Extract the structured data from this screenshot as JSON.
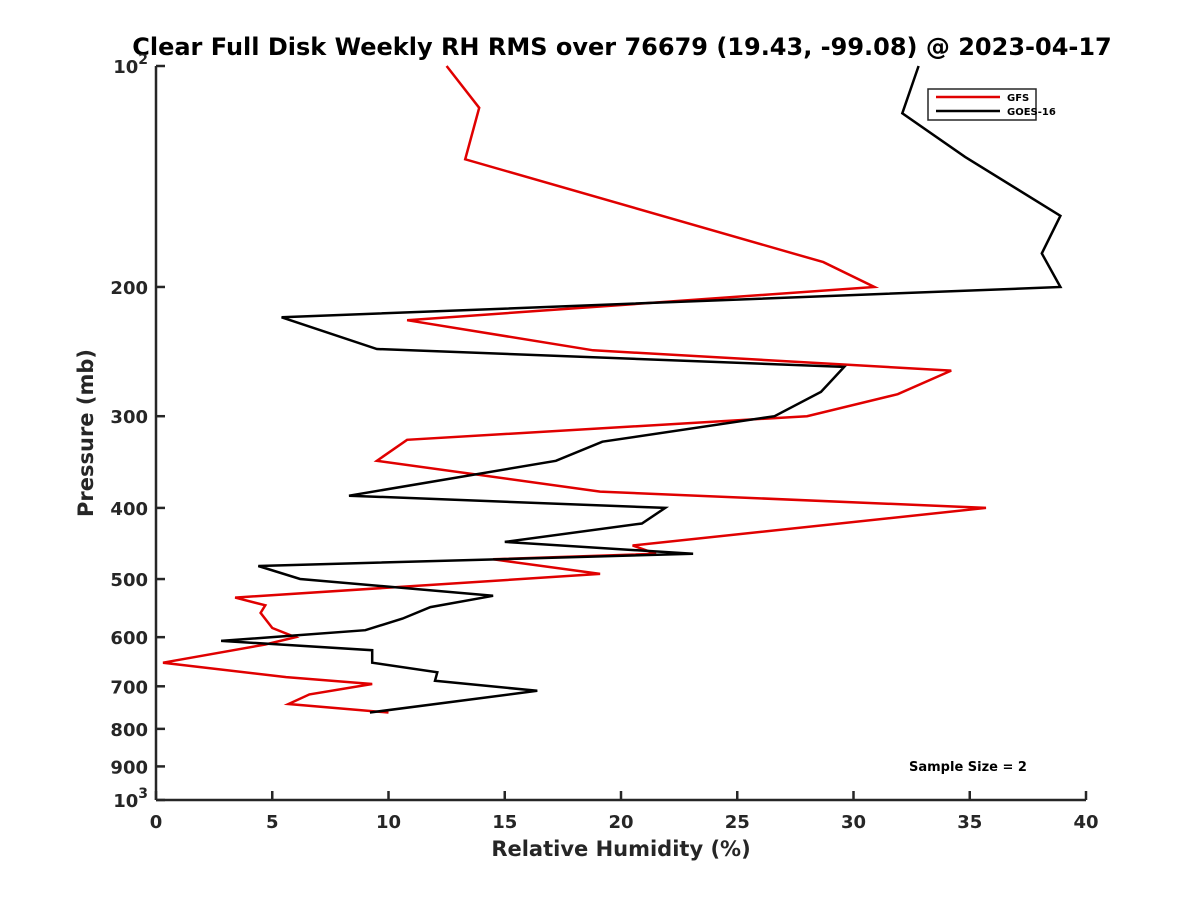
{
  "chart_data": {
    "type": "line",
    "title": "Clear Full Disk Weekly RH RMS over 76679 (19.43, -99.08) @ 2023-04-17",
    "xlabel": "Relative Humidity (%)",
    "ylabel": "Pressure (mb)",
    "xlim": [
      0,
      40
    ],
    "ylim": [
      100,
      1000
    ],
    "y_scale": "log",
    "y_reversed": true,
    "x_ticks": [
      0,
      5,
      10,
      15,
      20,
      25,
      30,
      35,
      40
    ],
    "x_tick_labels": [
      "0",
      "5",
      "10",
      "15",
      "20",
      "25",
      "30",
      "35",
      "40"
    ],
    "y_ticks": [
      100,
      200,
      300,
      400,
      500,
      600,
      700,
      800,
      900,
      1000
    ],
    "y_tick_labels": [
      "10^2",
      "200",
      "300",
      "400",
      "500",
      "600",
      "700",
      "800",
      "900",
      "10^3"
    ],
    "grid": false,
    "legend_position": "top-right",
    "annotation": "Sample Size = 2",
    "series": [
      {
        "name": "GFS",
        "color": "#e00000",
        "x": [
          12.5,
          13.9,
          13.3,
          28.7,
          30.9,
          10.8,
          18.8,
          34.2,
          31.9,
          28.0,
          10.8,
          9.5,
          19.1,
          35.7,
          20.5,
          21.5,
          14.5,
          19.1,
          3.4,
          4.7,
          4.5,
          5.0,
          6.0,
          4.7,
          0.3,
          5.6,
          9.3,
          6.6,
          5.7,
          10.0
        ],
        "y": [
          100,
          114,
          134,
          185,
          200,
          222,
          244,
          260,
          280,
          300,
          323,
          345,
          380,
          400,
          450,
          462,
          470,
          492,
          530,
          543,
          556,
          583,
          600,
          614,
          650,
          680,
          695,
          718,
          740,
          760
        ]
      },
      {
        "name": "GOES-16",
        "color": "#000000",
        "x": [
          32.8,
          32.1,
          34.8,
          38.9,
          38.1,
          38.9,
          5.4,
          9.5,
          29.6,
          28.6,
          26.6,
          19.2,
          17.2,
          8.3,
          21.9,
          20.9,
          15.0,
          23.1,
          4.4,
          6.2,
          14.5,
          11.8,
          10.6,
          9.0,
          2.8,
          9.3,
          9.3,
          12.1,
          12.0,
          16.4,
          9.2
        ],
        "y": [
          100,
          116,
          133,
          160,
          180,
          200,
          220,
          243,
          257,
          278,
          300,
          325,
          345,
          385,
          400,
          420,
          445,
          462,
          480,
          500,
          527,
          546,
          566,
          587,
          607,
          625,
          650,
          670,
          688,
          710,
          760
        ]
      }
    ]
  }
}
